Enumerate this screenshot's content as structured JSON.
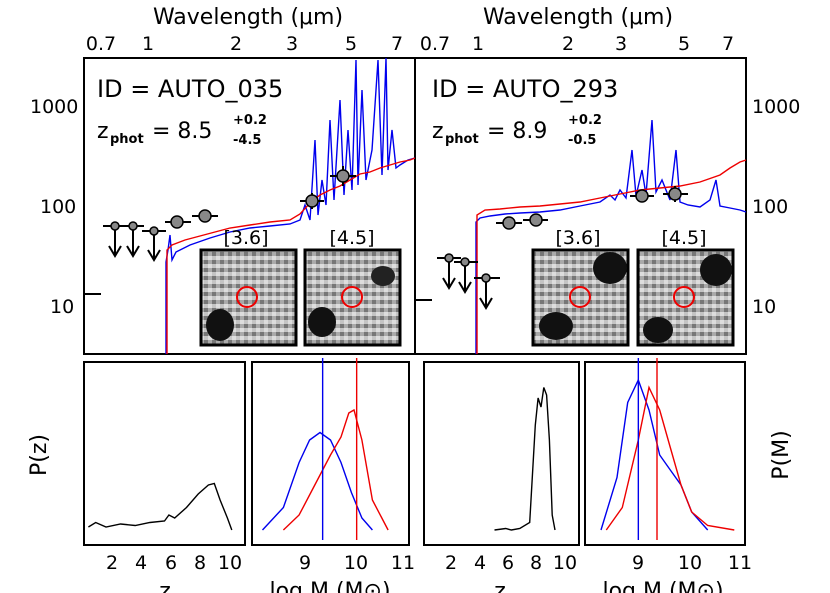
{
  "colors": {
    "model_blue": "#0000ee",
    "model_red": "#ee0000",
    "point_fill": "#888888",
    "axis": "#000000"
  },
  "top_axis": {
    "title": "Wavelength (μm)",
    "ticks_left": [
      "0.7",
      "1",
      "2",
      "3",
      "5",
      "7"
    ],
    "ticks_right": [
      "0.7",
      "1",
      "2",
      "3",
      "5",
      "7"
    ]
  },
  "sed_yaxis": {
    "ticks": [
      "1000",
      "100",
      "10"
    ],
    "scale": "log",
    "range": [
      3,
      3000
    ]
  },
  "left_object": {
    "id_text": "ID = AUTO_035",
    "zphot_label": "z",
    "zphot_sub": "phot",
    "zphot_value": "= 8.5",
    "zphot_plus": "+0.2",
    "zphot_minus": "-4.5",
    "cutouts": [
      "[3.6]",
      "[4.5]"
    ]
  },
  "right_object": {
    "id_text": "ID = AUTO_293",
    "zphot_label": "z",
    "zphot_sub": "phot",
    "zphot_value": "= 8.9",
    "zphot_plus": "+0.2",
    "zphot_minus": "-0.5",
    "cutouts": [
      "[3.6]",
      "[4.5]"
    ]
  },
  "bottom_panels": {
    "pz_label": "P(z)",
    "pm_label": "P(M)",
    "z_ticks": [
      "2",
      "4",
      "6",
      "8",
      "10"
    ],
    "z_xlabel": "z",
    "m_ticks": [
      "9",
      "10",
      "11"
    ],
    "m_xlabel": "log M (M⊙)"
  },
  "chart_data": [
    {
      "type": "scatter",
      "panel": "SED AUTO_035",
      "xlabel": "Wavelength (μm)",
      "x_scale": "log",
      "y_scale": "log",
      "ylim": [
        3,
        3000
      ],
      "detections": [
        {
          "x": 1.6,
          "y": 35
        },
        {
          "x": 2.0,
          "y": 40
        },
        {
          "x": 3.6,
          "y": 110
        },
        {
          "x": 4.5,
          "y": 200
        }
      ],
      "upper_limits": [
        {
          "x": 1.0,
          "y": 32
        },
        {
          "x": 1.1,
          "y": 32
        },
        {
          "x": 1.35,
          "y": 55
        }
      ]
    },
    {
      "type": "scatter",
      "panel": "SED AUTO_293",
      "xlabel": "Wavelength (μm)",
      "x_scale": "log",
      "y_scale": "log",
      "ylim": [
        3,
        3000
      ],
      "detections": [
        {
          "x": 1.25,
          "y": 65
        },
        {
          "x": 1.6,
          "y": 70
        },
        {
          "x": 3.6,
          "y": 125
        },
        {
          "x": 4.5,
          "y": 130
        }
      ],
      "upper_limits": [
        {
          "x": 0.8,
          "y": 29
        },
        {
          "x": 0.9,
          "y": 26
        },
        {
          "x": 1.0,
          "y": 18
        }
      ]
    },
    {
      "type": "line",
      "panel": "P(z) AUTO_035",
      "xlabel": "z",
      "xlim": [
        0,
        11
      ],
      "x": [
        0.3,
        0.8,
        1.5,
        2.5,
        3.5,
        4.5,
        5.5,
        5.8,
        6.2,
        7.0,
        7.8,
        8.5,
        8.9,
        9.3,
        9.8,
        10.1
      ],
      "y": [
        0.02,
        0.05,
        0.02,
        0.04,
        0.03,
        0.05,
        0.06,
        0.1,
        0.08,
        0.15,
        0.24,
        0.3,
        0.31,
        0.2,
        0.08,
        0.0
      ]
    },
    {
      "type": "line",
      "panel": "P(M) AUTO_035",
      "xlabel": "log M (M⊙)",
      "xlim": [
        8,
        11
      ],
      "series": [
        {
          "color": "blue",
          "x": [
            8.2,
            8.6,
            8.9,
            9.1,
            9.3,
            9.5,
            9.7,
            9.9,
            10.1,
            10.3
          ],
          "y": [
            0.0,
            0.15,
            0.45,
            0.6,
            0.65,
            0.6,
            0.45,
            0.25,
            0.08,
            0.0
          ]
        },
        {
          "color": "red",
          "x": [
            8.6,
            8.9,
            9.2,
            9.5,
            9.7,
            9.85,
            9.95,
            10.1,
            10.3,
            10.6
          ],
          "y": [
            0.0,
            0.1,
            0.3,
            0.5,
            0.62,
            0.78,
            0.8,
            0.6,
            0.2,
            0.0
          ]
        }
      ],
      "vlines": [
        {
          "color": "blue",
          "x": 9.35
        },
        {
          "color": "red",
          "x": 10.0
        }
      ]
    },
    {
      "type": "line",
      "panel": "P(z) AUTO_293",
      "xlabel": "z",
      "xlim": [
        0,
        11
      ],
      "x": [
        5.0,
        5.8,
        6.2,
        6.8,
        7.5,
        7.9,
        8.1,
        8.3,
        8.5,
        8.7,
        8.9,
        9.1,
        9.3
      ],
      "y": [
        0.0,
        0.01,
        0.0,
        0.01,
        0.05,
        0.7,
        0.88,
        0.82,
        0.95,
        0.9,
        0.6,
        0.1,
        0.0
      ]
    },
    {
      "type": "line",
      "panel": "P(M) AUTO_293",
      "xlabel": "log M (M⊙)",
      "xlim": [
        8,
        11
      ],
      "series": [
        {
          "color": "blue",
          "x": [
            8.3,
            8.6,
            8.8,
            9.0,
            9.2,
            9.4,
            9.6,
            9.8,
            10.0,
            10.3
          ],
          "y": [
            0.0,
            0.35,
            0.85,
            1.0,
            0.8,
            0.5,
            0.4,
            0.3,
            0.12,
            0.0
          ]
        },
        {
          "color": "red",
          "x": [
            8.4,
            8.7,
            9.0,
            9.2,
            9.4,
            9.6,
            9.8,
            10.0,
            10.3,
            10.8
          ],
          "y": [
            0.0,
            0.15,
            0.6,
            0.95,
            0.8,
            0.55,
            0.3,
            0.12,
            0.03,
            0.0
          ]
        }
      ],
      "vlines": [
        {
          "color": "blue",
          "x": 9.0
        },
        {
          "color": "red",
          "x": 9.35
        }
      ]
    }
  ]
}
